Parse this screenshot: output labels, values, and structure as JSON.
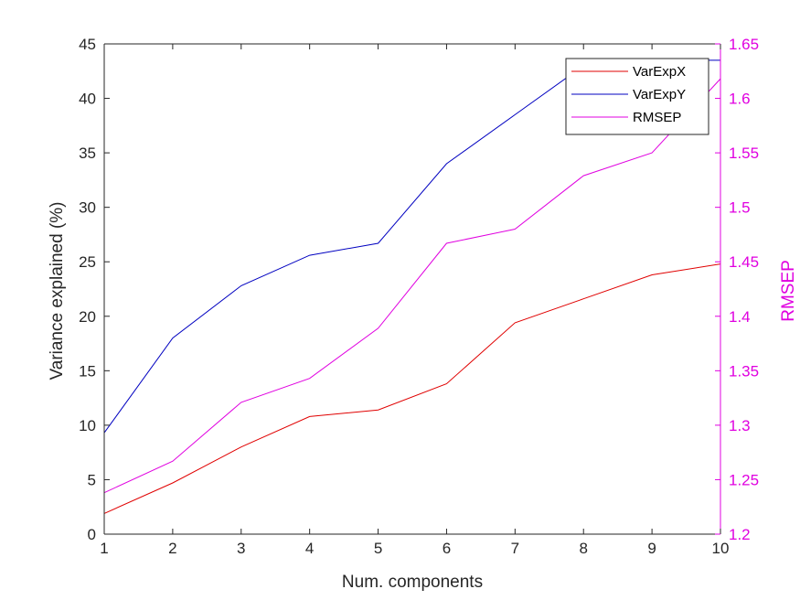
{
  "chart_data": {
    "type": "line",
    "title": "",
    "xlabel": "Num. components",
    "ylabel": "Variance explained (%)",
    "y2label": "RMSEP",
    "x": [
      1,
      2,
      3,
      4,
      5,
      6,
      7,
      8,
      9,
      10
    ],
    "xlim": [
      1,
      10
    ],
    "ylim": [
      0,
      45
    ],
    "y2lim": [
      1.2,
      1.65
    ],
    "xticks": [
      "1",
      "2",
      "3",
      "4",
      "5",
      "6",
      "7",
      "8",
      "9",
      "10"
    ],
    "yticks": [
      "0",
      "5",
      "10",
      "15",
      "20",
      "25",
      "30",
      "35",
      "40",
      "45"
    ],
    "y2ticks": [
      "1.2",
      "1.25",
      "1.3",
      "1.35",
      "1.4",
      "1.45",
      "1.5",
      "1.55",
      "1.6",
      "1.65"
    ],
    "grid": false,
    "legend_position": "top-right",
    "series": [
      {
        "name": "VarExpX",
        "axis": "left",
        "color": "#e00000",
        "values": [
          1.9,
          4.7,
          8.0,
          10.8,
          11.4,
          13.8,
          19.4,
          21.6,
          23.8,
          24.8
        ]
      },
      {
        "name": "VarExpY",
        "axis": "left",
        "color": "#0000c0",
        "values": [
          9.3,
          18.0,
          22.8,
          25.6,
          26.7,
          34.0,
          38.5,
          43.0,
          43.5,
          43.5
        ]
      },
      {
        "name": "RMSEP",
        "axis": "right",
        "color": "#e000e0",
        "values": [
          1.238,
          1.267,
          1.321,
          1.343,
          1.389,
          1.467,
          1.48,
          1.529,
          1.55,
          1.618
        ]
      }
    ],
    "colors": {
      "right_axis": "#e000e0",
      "left_axis": "#262626"
    }
  }
}
